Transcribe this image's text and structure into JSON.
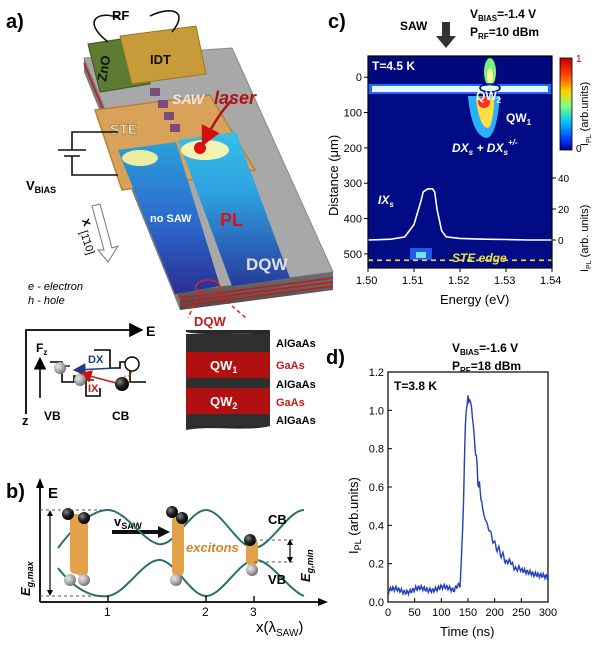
{
  "panel_labels": {
    "a": "a)",
    "b": "b)",
    "c": "c)",
    "d": "d)"
  },
  "panel_a": {
    "rf": "RF",
    "zno": "ZnO",
    "idt": "IDT",
    "saw": "SAW",
    "laser": "laser",
    "ste": "STE",
    "vbias": "V",
    "vbias_sub": "BIAS",
    "no_saw": "no SAW",
    "pl": "PL",
    "x_axis": "x",
    "x_dir": "[1̄10]",
    "dqw": "DQW",
    "legend_e": "e - electron",
    "legend_h": "h - hole",
    "energy": "E",
    "field": "F",
    "field_sub": "z",
    "z": "z",
    "vb": "VB",
    "cb": "CB",
    "dx": "DX",
    "ix": "IX",
    "layer_title": "DQW",
    "layers": [
      "AlGaAs",
      "GaAs",
      "AlGaAs",
      "GaAs",
      "AlGaAs"
    ],
    "qw1": "QW",
    "qw1_sub": "1",
    "qw2": "QW",
    "qw2_sub": "2"
  },
  "panel_b": {
    "e": "E",
    "vsaw": "v",
    "vsaw_sub": "SAW",
    "cb": "CB",
    "vb": "VB",
    "excitons": "excitons",
    "egmax": "E",
    "egmax_sub": "g,max",
    "egmin": "E",
    "egmin_sub": "g,min",
    "x_label": "x(λ",
    "x_label_sub": "SAW",
    "x_label_end": ")",
    "ticks": [
      "1",
      "2",
      "3"
    ]
  },
  "panel_c": {
    "saw": "SAW",
    "vbias": "V",
    "vbias_sub": "BIAS",
    "vbias_val": "=-1.4 V",
    "prf": "P",
    "prf_sub": "RF",
    "prf_val": "=10 dBm",
    "temp": "T=4.5 K",
    "qw2": "QW",
    "qw2_sub": "2",
    "qw1": "QW",
    "qw1_sub": "1",
    "dx": "DX",
    "dx_sub": "s",
    "dx_plus": " + DX",
    "dx_plus_sub": "s",
    "dx_plus_sup": "+/-",
    "ix": "IX",
    "ix_sub": "s",
    "ste_edge": "STE edge",
    "colorbar_label": "I",
    "colorbar_label_sub": "PL",
    "colorbar_label_end": " (arb.units)",
    "colorbar_ticks": [
      "1",
      "0"
    ]
  },
  "panel_d": {
    "vbias": "V",
    "vbias_sub": "BIAS",
    "vbias_val": "=-1.6 V",
    "prf": "P",
    "prf_sub": "RF",
    "prf_val": "=18 dBm",
    "temp": "T=3.8 K"
  },
  "chart_data": [
    {
      "type": "heatmap",
      "title": "",
      "xlabel": "Energy (eV)",
      "ylabel": "Distance (μm)",
      "y2label": "I_PL (arb. units)",
      "xlim": [
        1.5,
        1.54
      ],
      "ylim": [
        540,
        -60
      ],
      "xticks": [
        "1.50",
        "1.51",
        "1.52",
        "1.53",
        "1.54"
      ],
      "yticks": [
        "0",
        "100",
        "200",
        "300",
        "400",
        "500"
      ],
      "y2ticks": [
        "40",
        "20",
        "0"
      ],
      "ste_edge_distance": 518,
      "series": [
        {
          "name": "I_PL spectrum",
          "x": [
            1.5,
            1.505,
            1.508,
            1.51,
            1.5115,
            1.512,
            1.513,
            1.514,
            1.5145,
            1.515,
            1.516,
            1.517,
            1.52,
            1.525,
            1.53,
            1.535,
            1.54
          ],
          "values": [
            0,
            0.5,
            2,
            10,
            25,
            31,
            33,
            33,
            31,
            20,
            6,
            2,
            1,
            0.5,
            0.3,
            0,
            0
          ]
        }
      ]
    },
    {
      "type": "line",
      "title": "",
      "xlabel": "Time (ns)",
      "ylabel": "I_PL (arb.units)",
      "xlim": [
        0,
        300
      ],
      "ylim": [
        0,
        1.2
      ],
      "xticks": [
        "0",
        "50",
        "100",
        "150",
        "200",
        "250",
        "300"
      ],
      "yticks": [
        "0.0",
        "0.2",
        "0.4",
        "0.6",
        "0.8",
        "1.0",
        "1.2"
      ],
      "series": [
        {
          "name": "I_PL",
          "x": [
            0,
            40,
            80,
            120,
            135,
            140,
            145,
            150,
            155,
            160,
            170,
            180,
            200,
            220,
            250,
            275,
            300
          ],
          "values": [
            0.06,
            0.06,
            0.07,
            0.07,
            0.08,
            0.4,
            0.9,
            1.05,
            1.07,
            0.9,
            0.62,
            0.45,
            0.3,
            0.22,
            0.16,
            0.14,
            0.13
          ]
        }
      ]
    }
  ]
}
